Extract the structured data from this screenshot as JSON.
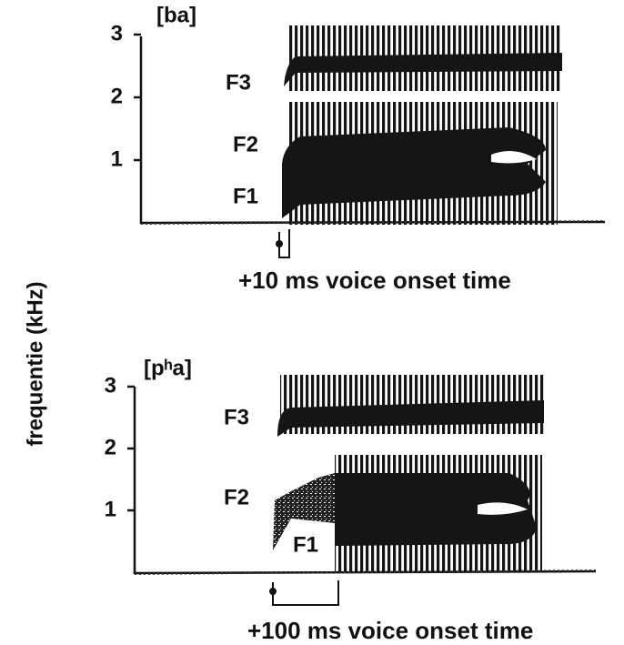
{
  "y_axis_label": "frequentie (kHz)",
  "panels": [
    {
      "label": "[ba]",
      "ticks": [
        3,
        2,
        1
      ],
      "formants": [
        "F3",
        "F2",
        "F1"
      ],
      "caption": "+10 ms voice onset time"
    },
    {
      "label": "[pʰa]",
      "ticks": [
        3,
        2,
        1
      ],
      "formants": [
        "F3",
        "F2",
        "F1"
      ],
      "caption": "+100 ms voice onset time"
    }
  ]
}
